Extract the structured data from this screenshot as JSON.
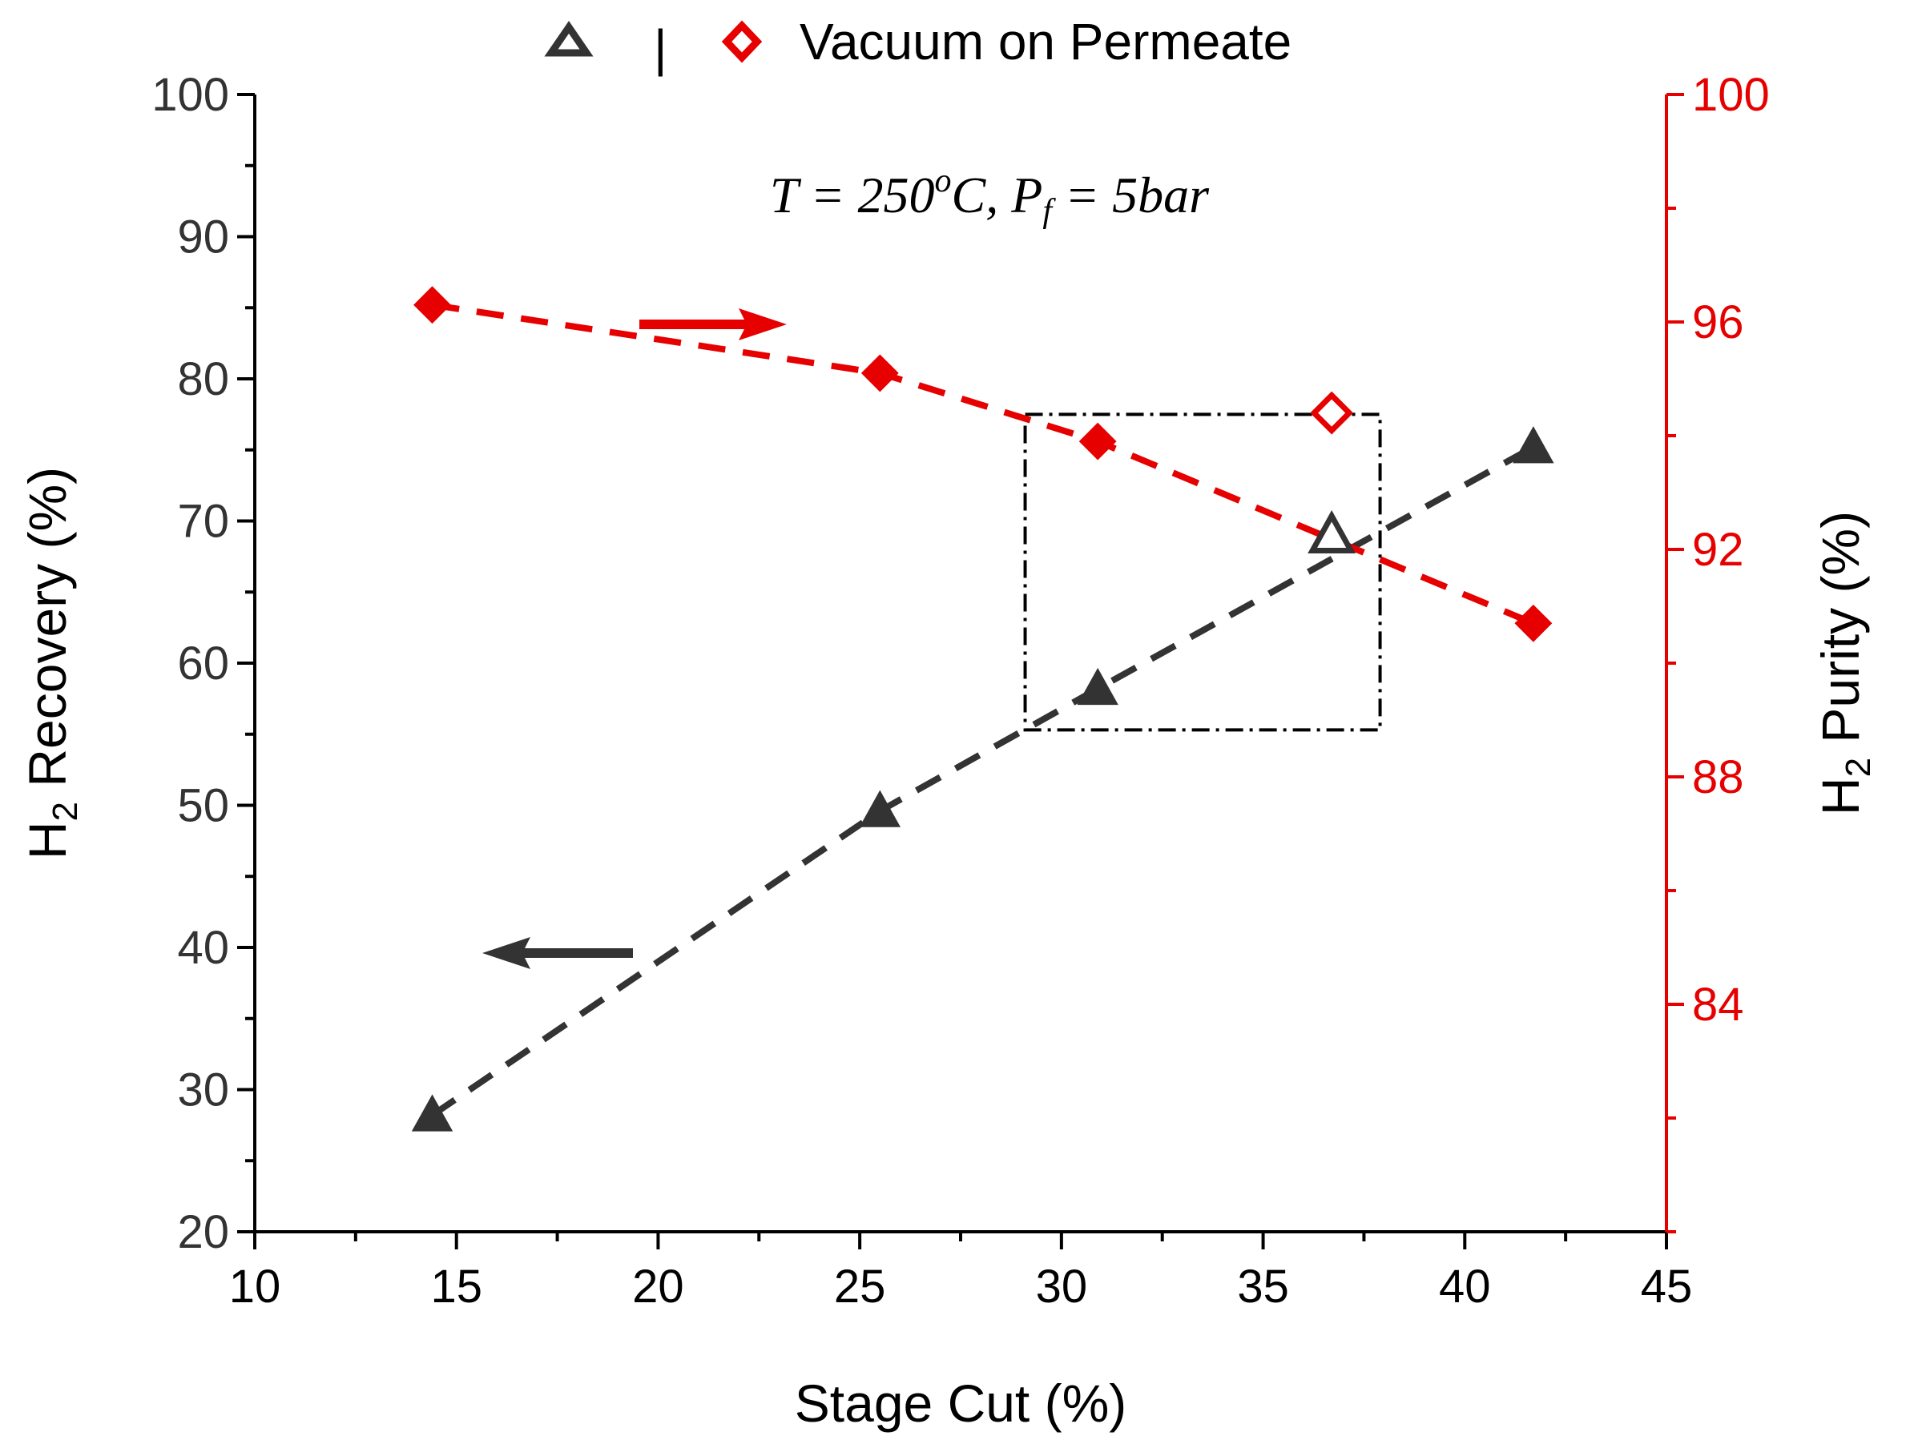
{
  "chart_data": {
    "type": "line",
    "title": "",
    "annotation": {
      "prefix": "T = 250",
      "degree": "o",
      "unit": "C, P",
      "subscript": "f",
      "suffix": " = 5bar"
    },
    "xlabel": "Stage Cut (%)",
    "ylabel_left": {
      "pre": "H",
      "sub": "2",
      "post": " Recovery (%)"
    },
    "ylabel_right": {
      "pre": "H",
      "sub": "2",
      "post": " Purity (%)"
    },
    "xlim": [
      10,
      45
    ],
    "ylim_left": [
      20,
      100
    ],
    "ylim_right": [
      80,
      100
    ],
    "x_ticks": [
      "10",
      "15",
      "20",
      "25",
      "30",
      "35",
      "40",
      "45"
    ],
    "y_left_ticks": [
      "20",
      "30",
      "40",
      "50",
      "60",
      "70",
      "80",
      "90",
      "100"
    ],
    "y_right_ticks": [
      "84",
      "88",
      "92",
      "96",
      "100"
    ],
    "grid": false,
    "legend": {
      "position": "top-center",
      "separator": "|",
      "label": "Vacuum on Permeate"
    },
    "series": [
      {
        "name": "H2 Recovery",
        "axis": "left",
        "color": "#333333",
        "marker": "triangle",
        "x": [
          14.4,
          25.5,
          30.9,
          41.7
        ],
        "y": [
          28.2,
          49.6,
          58.2,
          75.2
        ]
      },
      {
        "name": "H2 Purity",
        "axis": "right",
        "color": "#e60000",
        "marker": "diamond",
        "x": [
          14.4,
          25.5,
          30.9,
          41.7
        ],
        "y": [
          96.3,
          95.1,
          93.9,
          90.7
        ]
      },
      {
        "name": "Vacuum on Permeate - Recovery",
        "axis": "left",
        "color": "#333333",
        "marker": "triangle-open",
        "x": [
          36.7
        ],
        "y": [
          69.0
        ]
      },
      {
        "name": "Vacuum on Permeate - Purity",
        "axis": "right",
        "color": "#e60000",
        "marker": "diamond-open",
        "x": [
          36.7
        ],
        "y": [
          94.4
        ]
      }
    ],
    "highlight_box": {
      "x": [
        29.1,
        37.9
      ],
      "y_left": [
        55.3,
        77.5
      ]
    },
    "arrows": [
      {
        "direction": "right",
        "axis": "purity",
        "color": "#e60000"
      },
      {
        "direction": "left",
        "axis": "recovery",
        "color": "#333333"
      }
    ],
    "colors": {
      "recovery": "#333333",
      "purity": "#e60000",
      "axis": "#000000",
      "purity_axis": "#e60000"
    }
  }
}
